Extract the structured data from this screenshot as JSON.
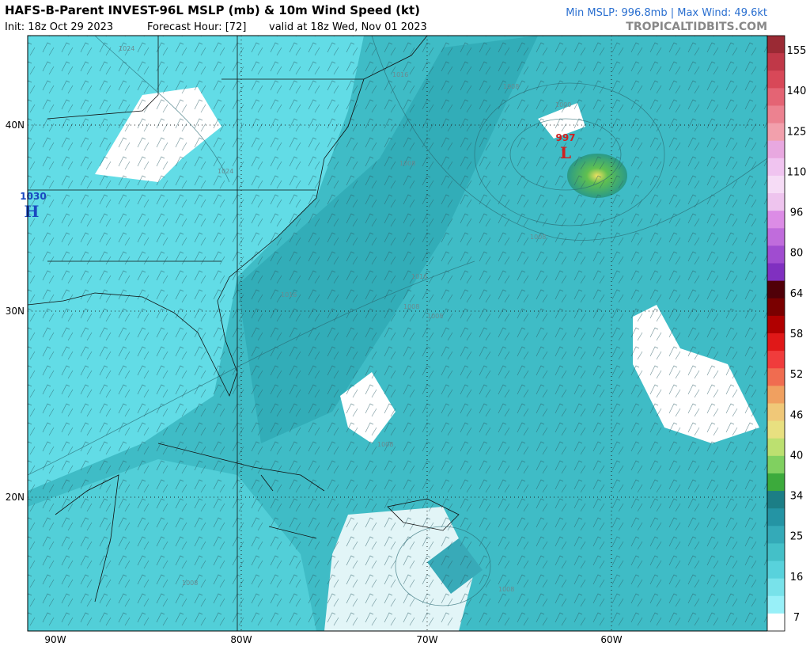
{
  "header": {
    "title": "HAFS-B-Parent INVEST-96L MSLP (mb) & 10m Wind Speed (kt)",
    "init": "Init: 18z Oct 29 2023",
    "forecast_hour": "Forecast Hour: [72]",
    "valid": "valid at 18z Wed, Nov 01 2023",
    "stats": "Min MSLP: 996.8mb | Max Wind: 49.6kt",
    "source": "TROPICALTIDBITS.COM"
  },
  "map": {
    "lat_labels": [
      "40N",
      "30N",
      "20N"
    ],
    "lon_labels": [
      "90W",
      "80W",
      "70W",
      "60W"
    ],
    "isobar_labels": [
      "1024",
      "1016",
      "1008",
      "1000",
      "1024",
      "1008",
      "1008",
      "1016",
      "1016",
      "1008",
      "1008",
      "1008",
      "1008",
      "1008"
    ],
    "high": {
      "value": "1030",
      "symbol": "H"
    },
    "low": {
      "value": "997",
      "symbol": "L"
    }
  },
  "colorbar": {
    "ticks": [
      7,
      16,
      25,
      34,
      40,
      46,
      52,
      58,
      64,
      80,
      96,
      110,
      125,
      140,
      155
    ],
    "colors": [
      "#9a2a34",
      "#c03848",
      "#d84858",
      "#e46474",
      "#ec8290",
      "#f2a0ac",
      "#e8a8e0",
      "#f0c4f0",
      "#f6dcf6",
      "#eec4ee",
      "#dc8ce6",
      "#c06cdc",
      "#a04cd0",
      "#8030c0",
      "#500008",
      "#7a0000",
      "#b00000",
      "#e01818",
      "#f03c3c",
      "#f06c50",
      "#f0a060",
      "#f0c878",
      "#e8e080",
      "#bce070",
      "#80d060",
      "#3caa3c",
      "#1c7e86",
      "#2494a4",
      "#34aab8",
      "#44c0c8",
      "#58d2dc",
      "#78e2ea",
      "#98f0f8",
      "#ffffff"
    ]
  }
}
